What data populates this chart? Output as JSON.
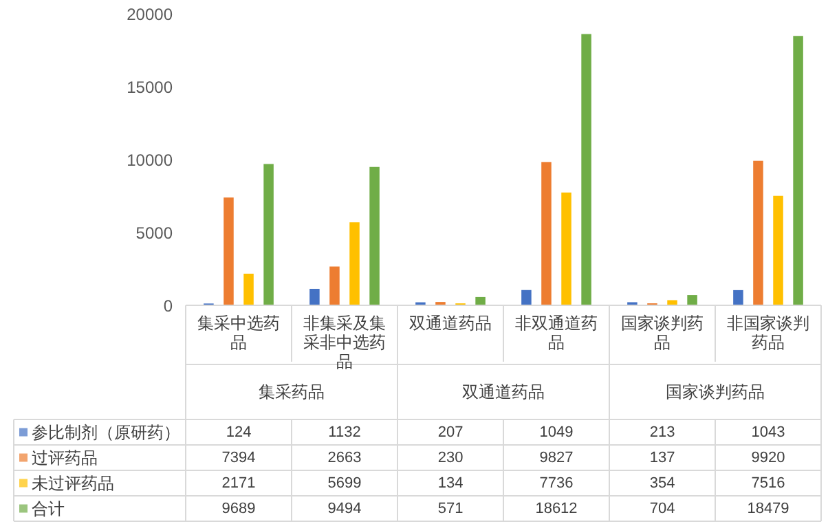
{
  "chart_data": {
    "type": "bar",
    "categories": [
      "集采中选药品",
      "非集采及集采非中选药品",
      "双通道药品",
      "非双通道药品",
      "国家谈判药品",
      "非国家谈判药品"
    ],
    "annotations": [
      "集采药品",
      "双通道药品",
      "国家谈判药品"
    ],
    "series": [
      {
        "name": "参比制剂（原研药）",
        "color": "#4472c4",
        "values": [
          124,
          1132,
          207,
          1049,
          213,
          1043
        ]
      },
      {
        "name": "过评药品",
        "color": "#ed7d31",
        "values": [
          7394,
          2663,
          230,
          9827,
          137,
          9920
        ]
      },
      {
        "name": "未过评药品",
        "color": "#ffc000",
        "values": [
          2171,
          5699,
          134,
          7736,
          354,
          7516
        ]
      },
      {
        "name": "合计",
        "color": "#70ad47",
        "values": [
          9689,
          9494,
          571,
          18612,
          704,
          18479
        ]
      }
    ],
    "ylim": [
      0,
      20000
    ],
    "yticks": [
      0,
      5000,
      10000,
      15000,
      20000
    ],
    "data_labels": true,
    "legend": "bottom left",
    "grid": false
  }
}
